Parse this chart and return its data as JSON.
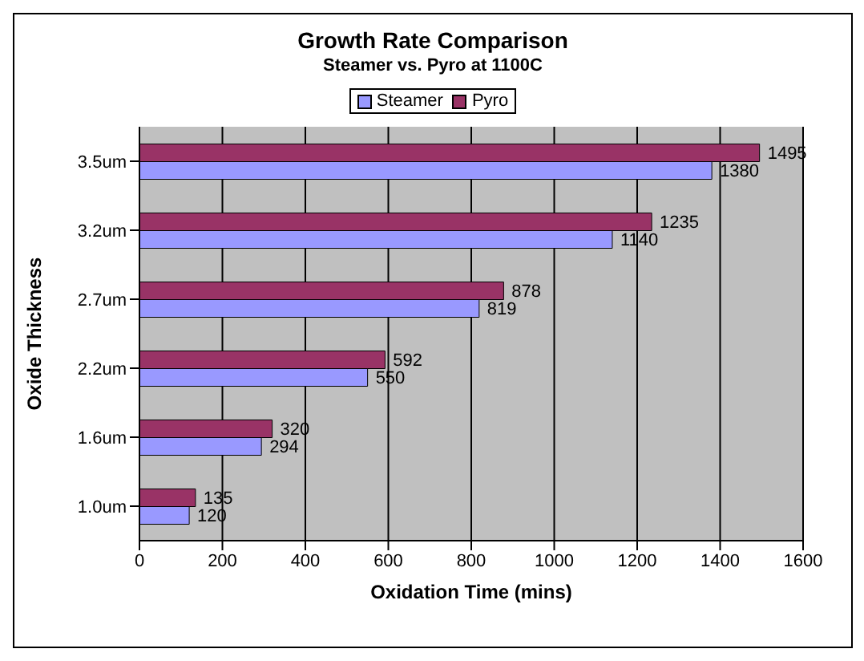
{
  "chart_data": {
    "type": "bar",
    "orientation": "horizontal",
    "title": "Growth Rate Comparison",
    "subtitle": "Steamer vs. Pyro at 1100C",
    "xlabel": "Oxidation Time (mins)",
    "ylabel": "Oxide Thickness",
    "categories": [
      "3.5um",
      "3.2um",
      "2.7um",
      "2.2um",
      "1.6um",
      "1.0um"
    ],
    "series": [
      {
        "name": "Steamer",
        "color": "#9999ff",
        "values": [
          1380,
          1140,
          819,
          550,
          294,
          120
        ]
      },
      {
        "name": "Pyro",
        "color": "#993366",
        "values": [
          1495,
          1235,
          878,
          592,
          320,
          135
        ]
      }
    ],
    "xlim": [
      0,
      1600
    ],
    "xticks": [
      0,
      200,
      400,
      600,
      800,
      1000,
      1200,
      1400,
      1600
    ],
    "grid": "x",
    "legend": "top",
    "data_labels": true
  }
}
